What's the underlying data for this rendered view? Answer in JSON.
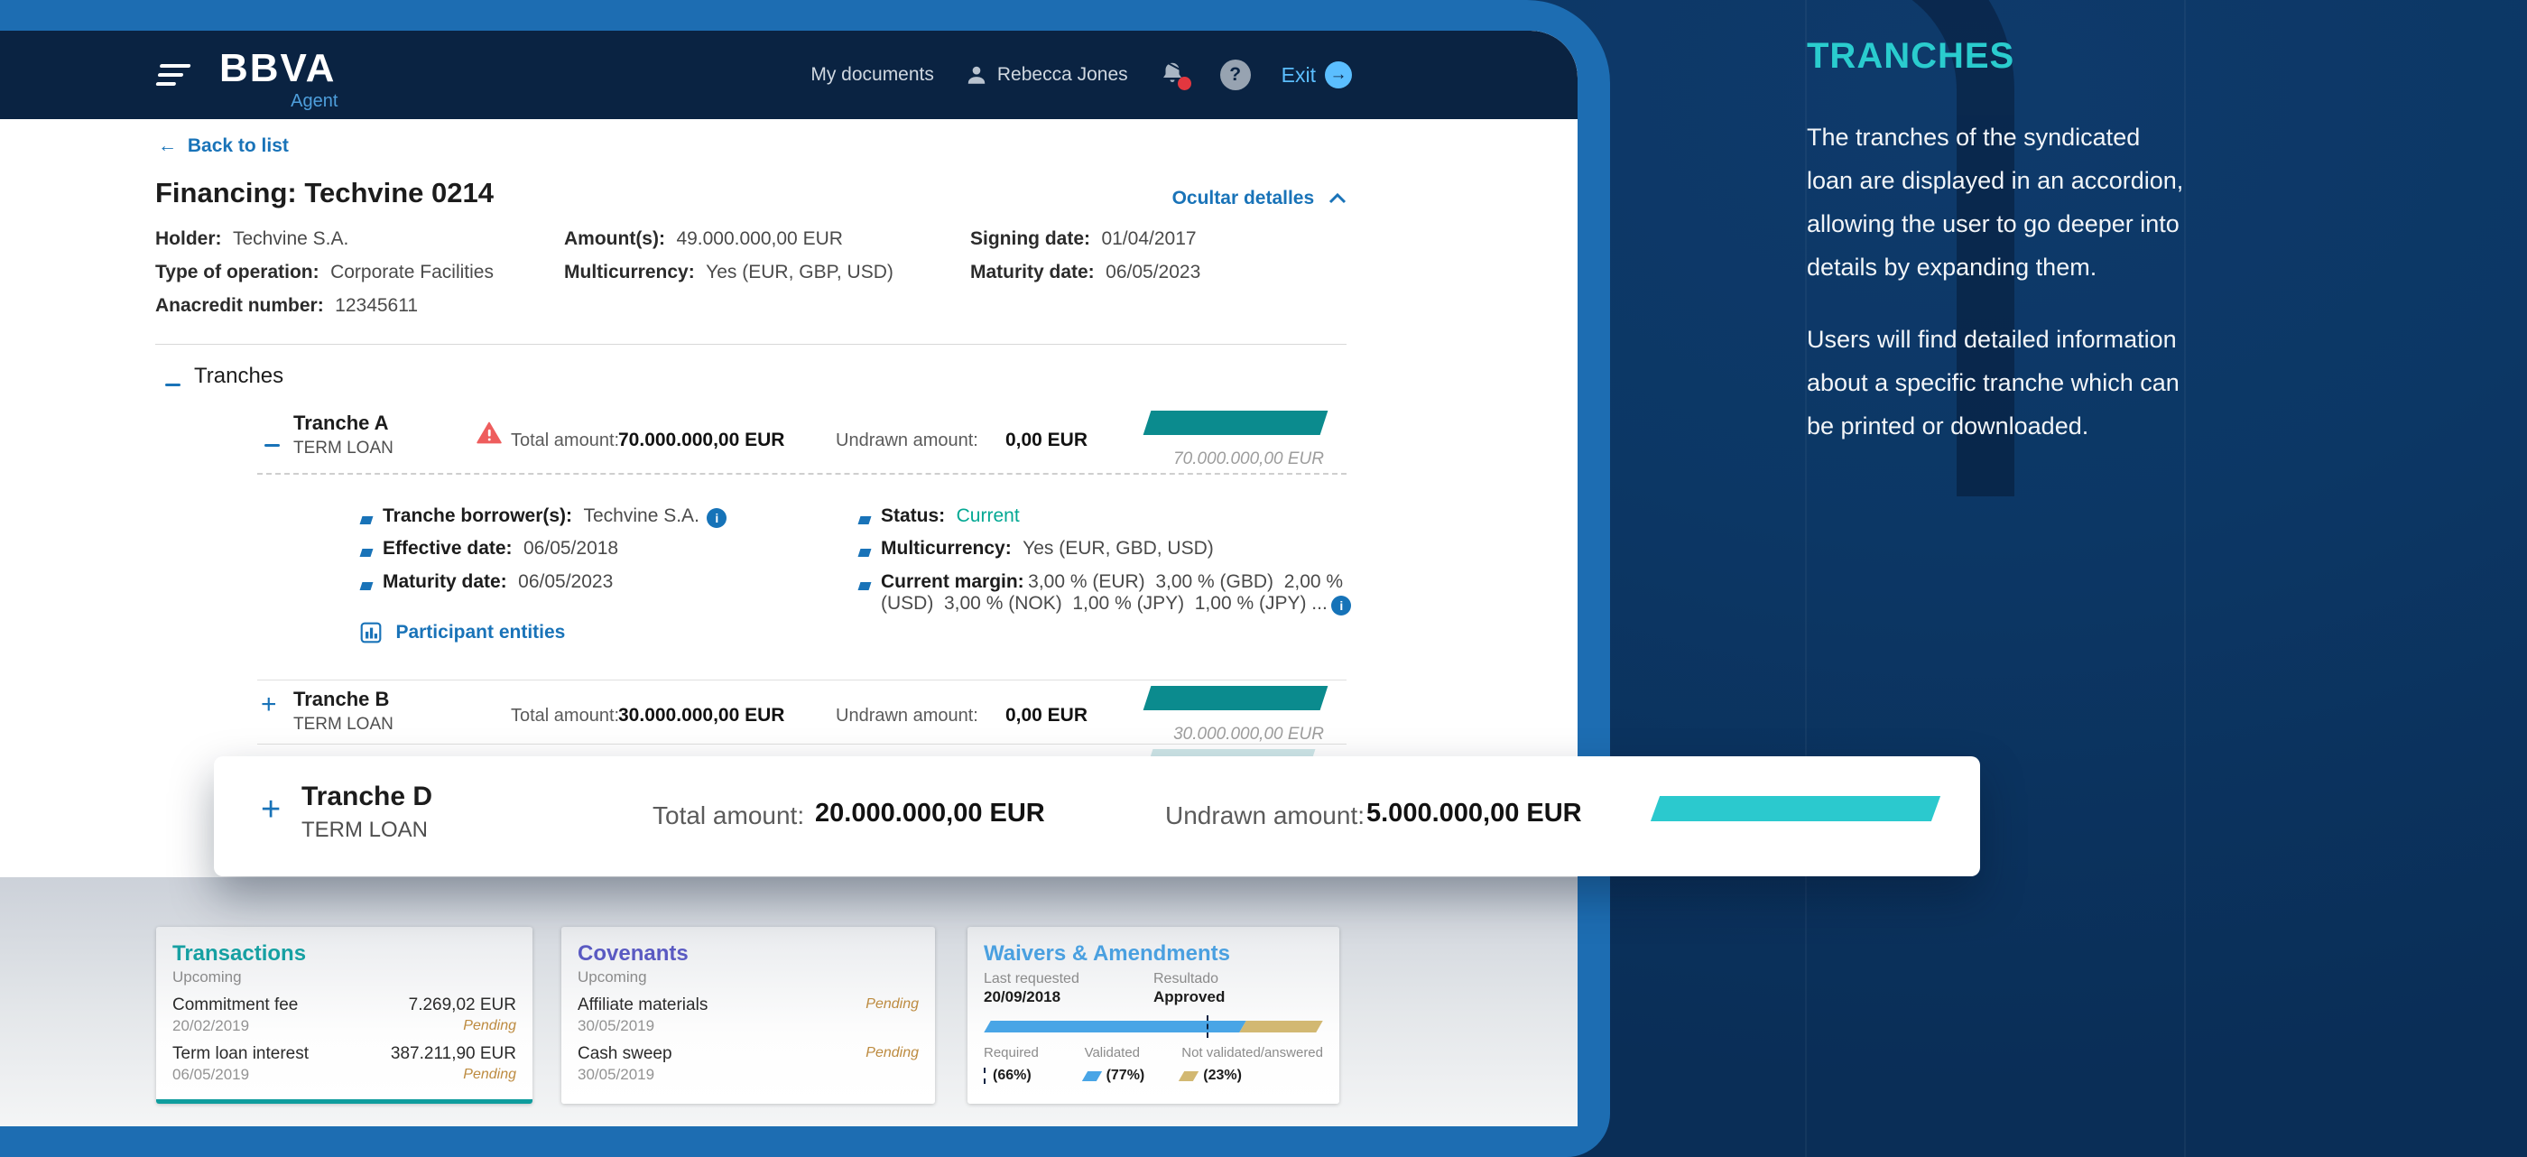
{
  "navbar": {
    "brand": "BBVA",
    "brand_sub": "Agent",
    "my_documents": "My documents",
    "user_name": "Rebecca Jones",
    "exit_label": "Exit",
    "question_mark": "?",
    "arrow_right": "→"
  },
  "header": {
    "back_arrow": "←",
    "back_link": "Back to list",
    "title": "Financing: Techvine 0214",
    "toggle_details": "Ocultar detalles"
  },
  "summary": {
    "fields": [
      {
        "label": "Holder:",
        "value": "Techvine S.A."
      },
      {
        "label": "Type of operation:",
        "value": "Corporate Facilities"
      },
      {
        "label": "Anacredit number:",
        "value": "12345611"
      },
      {
        "label": "Amount(s):",
        "value": "49.000.000,00 EUR"
      },
      {
        "label": "Multicurrency:",
        "value": "Yes (EUR, GBP, USD)"
      },
      {
        "label": "Signing date:",
        "value": "01/04/2017"
      },
      {
        "label": "Maturity date:",
        "value": "06/05/2023"
      }
    ]
  },
  "tranches": {
    "section_title": "Tranches",
    "total_label": "Total amount:",
    "undrawn_label": "Undrawn amount:",
    "a": {
      "name": "Tranche A",
      "type": "TERM LOAN",
      "total": "70.000.000,00 EUR",
      "undrawn": "0,00 EUR",
      "bar_label": "70.000.000,00 EUR",
      "borrower_label": "Tranche borrower(s):",
      "borrower": "Techvine S.A.",
      "effective_label": "Effective date:",
      "effective": "06/05/2018",
      "maturity_label": "Maturity date:",
      "maturity": "06/05/2023",
      "status_label": "Status:",
      "status": "Current",
      "multicurrency_label": "Multicurrency:",
      "multicurrency": "Yes (EUR, GBD, USD)",
      "margin_label": "Current margin:",
      "margin": "3,00 % (EUR)  3,00 % (GBD)  2,00 % (USD)  3,00 % (NOK)  1,00 % (JPY)  1,00 % (JPY) ...",
      "participant_link": "Participant entities"
    },
    "b": {
      "name": "Tranche B",
      "type": "TERM LOAN",
      "total": "30.000.000,00 EUR",
      "undrawn": "0,00 EUR",
      "bar_label": "30.000.000,00 EUR"
    },
    "d": {
      "name": "Tranche D",
      "type": "TERM LOAN",
      "total": "20.000.000,00 EUR",
      "undrawn": "5.000.000,00 EUR"
    }
  },
  "cards": {
    "transactions": {
      "title": "Transactions",
      "subtitle": "Upcoming",
      "rows": [
        {
          "name": "Commitment fee",
          "date": "20/02/2019",
          "amount": "7.269,02 EUR",
          "status": "Pending"
        },
        {
          "name": "Term loan interest",
          "date": "06/05/2019",
          "amount": "387.211,90 EUR",
          "status": "Pending"
        }
      ]
    },
    "covenants": {
      "title": "Covenants",
      "subtitle": "Upcoming",
      "rows": [
        {
          "name": "Affiliate materials",
          "date": "30/05/2019",
          "status": "Pending"
        },
        {
          "name": "Cash sweep",
          "date": "30/05/2019",
          "status": "Pending"
        }
      ]
    },
    "waivers": {
      "title": "Waivers & Amendments",
      "last_requested_label": "Last requested",
      "last_requested": "20/09/2018",
      "result_label": "Resultado",
      "result": "Approved",
      "bar": {
        "validated_pct": 77,
        "not_validated_pct": 23,
        "required_pct": 66
      },
      "legend": [
        {
          "label": "Required",
          "value": "(66%)"
        },
        {
          "label": "Validated",
          "value": "(77%)"
        },
        {
          "label": "Not validated/answered",
          "value": "(23%)"
        }
      ]
    }
  },
  "side_panel": {
    "title": "TRANCHES",
    "p1": "The tranches of the syndicated\nloan are displayed in an accordion,\nallowing the user to go deeper into\ndetails by expanding them.",
    "p2": "Users will find detailed information\nabout a specific tranche which can\nbe printed or downloaded."
  },
  "colors": {
    "accent_cyan": "#2ACCCE",
    "frame_blue": "#1D6DB2",
    "navbar_navy": "#0A2342",
    "teal_bar": "#0B8B8E",
    "bright_teal_bar": "#2BC9CE",
    "link_blue": "#1973B8",
    "pending_gold": "#BD8B40",
    "approved_green": "#2F7D3B",
    "waiver_blue": "#49A5E6",
    "waiver_gold": "#C8A958"
  }
}
